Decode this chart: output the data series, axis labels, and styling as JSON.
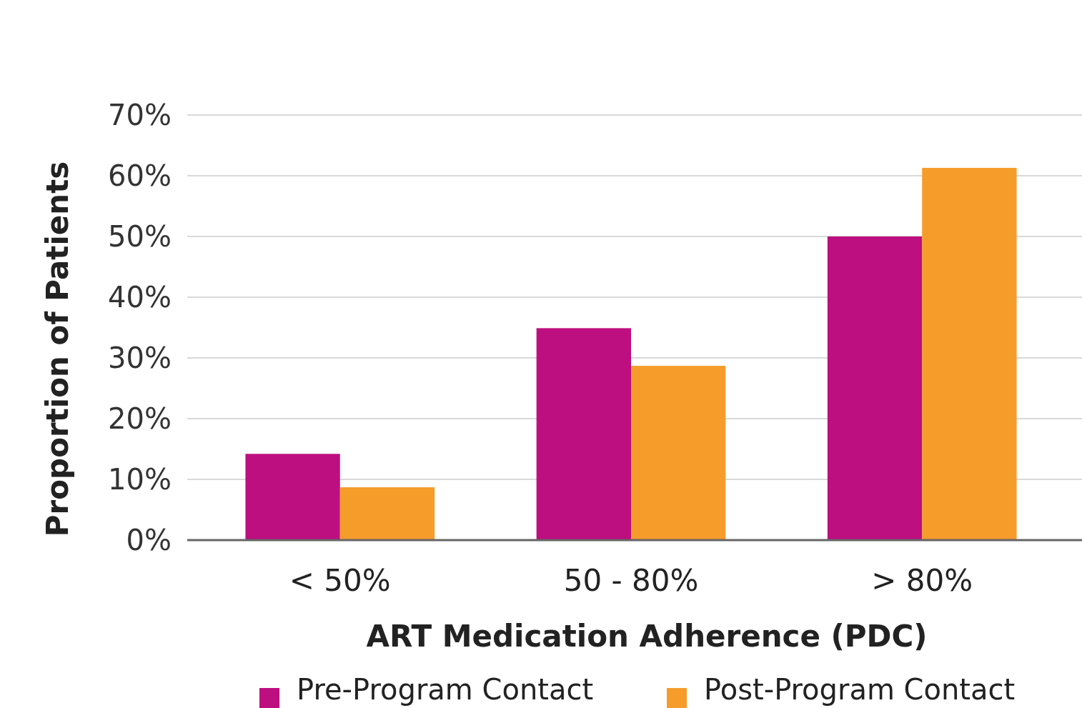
{
  "chart_data": {
    "type": "bar",
    "xlabel": "ART Medication Adherence (PDC)",
    "ylabel": "Proportion of Patients",
    "categories": [
      "< 50%",
      "50 - 80%",
      "> 80%"
    ],
    "series": [
      {
        "name": "Pre-Program Contact",
        "color": "#bd0f7f",
        "values": [
          14.2,
          34.9,
          50
        ]
      },
      {
        "name": "Post-Program Contact",
        "color": "#f59c2b",
        "values": [
          8.7,
          28.7,
          61.3
        ]
      }
    ],
    "ylim": [
      0,
      70
    ],
    "yticks": [
      {
        "value": 0,
        "label": "0%"
      },
      {
        "value": 10,
        "label": "10%"
      },
      {
        "value": 20,
        "label": "20%"
      },
      {
        "value": 30,
        "label": "30%"
      },
      {
        "value": 40,
        "label": "40%"
      },
      {
        "value": 50,
        "label": "50%"
      },
      {
        "value": 60,
        "label": "60%"
      },
      {
        "value": 70,
        "label": "70%"
      }
    ],
    "grid": "y",
    "legend": "bottom"
  }
}
